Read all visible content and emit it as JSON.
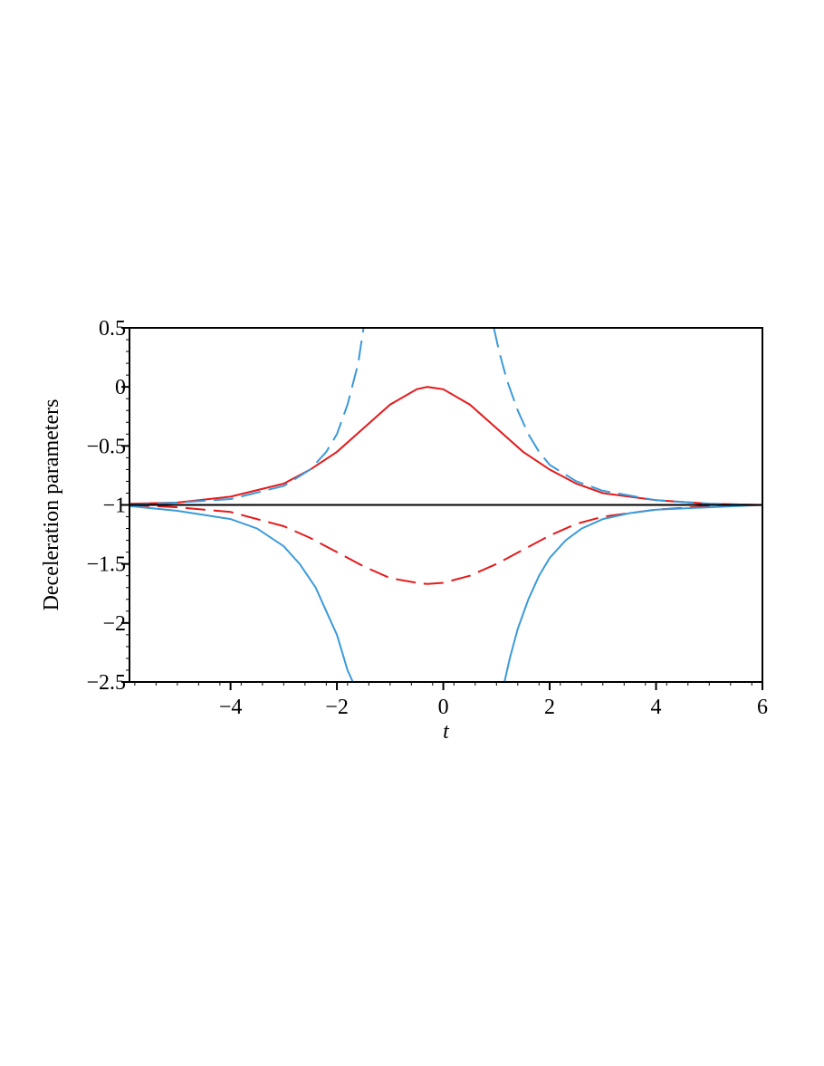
{
  "chart_data": {
    "type": "line",
    "title": "",
    "xlabel": "t",
    "ylabel": "Deceleration parameters",
    "xlim": [
      -5.9,
      6
    ],
    "ylim": [
      -2.5,
      0.5
    ],
    "xticks": [
      -4,
      -2,
      0,
      2,
      4,
      6
    ],
    "xtick_labels": [
      "−4",
      "−2",
      "0",
      "2",
      "4",
      "6"
    ],
    "yticks": [
      0.5,
      0,
      -0.5,
      -1,
      -1.5,
      -2,
      -2.5
    ],
    "ytick_labels": [
      "0.5",
      "0",
      "−0.5",
      "−1",
      "−1.5",
      "−2",
      "−2.5"
    ],
    "grid": false,
    "legend": "none",
    "series": [
      {
        "color": "#e41a1c",
        "style": "solid",
        "x": [
          -5.9,
          -5,
          -4,
          -3,
          -2.5,
          -2,
          -1.5,
          -1,
          -0.5,
          -0.3,
          0,
          0.5,
          1,
          1.5,
          2,
          2.5,
          3,
          4,
          5,
          6
        ],
        "y": [
          -0.99,
          -0.98,
          -0.93,
          -0.82,
          -0.7,
          -0.55,
          -0.35,
          -0.15,
          -0.02,
          0.0,
          -0.02,
          -0.15,
          -0.35,
          -0.55,
          -0.7,
          -0.82,
          -0.9,
          -0.96,
          -0.99,
          -1.0
        ]
      },
      {
        "color": "#e41a1c",
        "style": "dashed",
        "x": [
          -5.9,
          -5,
          -4,
          -3,
          -2.5,
          -2,
          -1.5,
          -1,
          -0.5,
          -0.3,
          0,
          0.5,
          1,
          1.5,
          2,
          2.5,
          3,
          4,
          5,
          6
        ],
        "y": [
          -1.0,
          -1.02,
          -1.06,
          -1.18,
          -1.28,
          -1.4,
          -1.52,
          -1.62,
          -1.66,
          -1.67,
          -1.66,
          -1.6,
          -1.5,
          -1.38,
          -1.26,
          -1.16,
          -1.1,
          -1.04,
          -1.01,
          -1.0
        ]
      },
      {
        "color": "#3b9ad9",
        "style": "dashed",
        "x": [
          -5.9,
          -5,
          -4,
          -3,
          -2.5,
          -2.2,
          -2,
          -1.8,
          -1.6,
          -1.5
        ],
        "y": [
          -1.0,
          -0.98,
          -0.95,
          -0.84,
          -0.7,
          -0.55,
          -0.4,
          -0.15,
          0.2,
          0.5
        ]
      },
      {
        "color": "#3b9ad9",
        "style": "dashed",
        "x": [
          0.95,
          1.05,
          1.2,
          1.4,
          1.6,
          1.8,
          2,
          2.5,
          3,
          4,
          5,
          6
        ],
        "y": [
          0.5,
          0.3,
          0.05,
          -0.2,
          -0.4,
          -0.55,
          -0.66,
          -0.8,
          -0.88,
          -0.96,
          -0.99,
          -1.0
        ]
      },
      {
        "color": "#3b9ad9",
        "style": "solid",
        "x": [
          -5.9,
          -5,
          -4,
          -3.5,
          -3,
          -2.7,
          -2.4,
          -2.2,
          -2,
          -1.9,
          -1.8,
          -1.7
        ],
        "y": [
          -1.01,
          -1.05,
          -1.12,
          -1.2,
          -1.35,
          -1.5,
          -1.7,
          -1.9,
          -2.1,
          -2.25,
          -2.4,
          -2.5
        ]
      },
      {
        "color": "#3b9ad9",
        "style": "solid",
        "x": [
          1.15,
          1.25,
          1.4,
          1.6,
          1.8,
          2,
          2.3,
          2.6,
          3,
          3.5,
          4,
          5,
          6
        ],
        "y": [
          -2.5,
          -2.3,
          -2.05,
          -1.8,
          -1.6,
          -1.45,
          -1.3,
          -1.2,
          -1.12,
          -1.07,
          -1.04,
          -1.02,
          -1.0
        ]
      },
      {
        "color": "#000000",
        "style": "solid",
        "x": [
          -5.9,
          6
        ],
        "y": [
          -1.0,
          -1.0
        ]
      }
    ]
  }
}
